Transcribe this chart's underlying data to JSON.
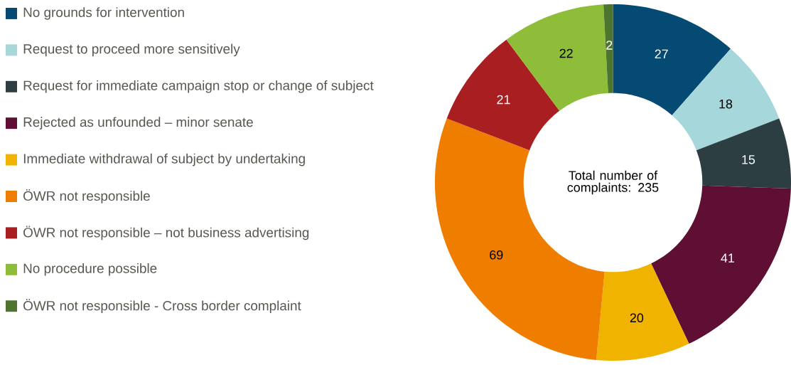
{
  "chart_data": {
    "type": "donut",
    "categories": [
      "No grounds for intervention",
      "Request to proceed more sensitively",
      "Request for immediate campaign stop or change of subject",
      "Rejected as unfounded – minor senate",
      "Immediate withdrawal of subject by undertaking",
      "ÖWR not responsible",
      "ÖWR not responsible – not business advertising",
      "No procedure possible",
      "ÖWR not responsible - Cross border complaint"
    ],
    "values": [
      27,
      18,
      15,
      41,
      20,
      69,
      21,
      22,
      2
    ],
    "colors": [
      "#044a73",
      "#a6d7da",
      "#2d3e42",
      "#5e0f33",
      "#efb300",
      "#ee7d00",
      "#a81e21",
      "#8dbd39",
      "#4e7530"
    ],
    "data_labels": true,
    "legend": "left",
    "annotations": [
      "Total number of complaints: 235"
    ]
  }
}
